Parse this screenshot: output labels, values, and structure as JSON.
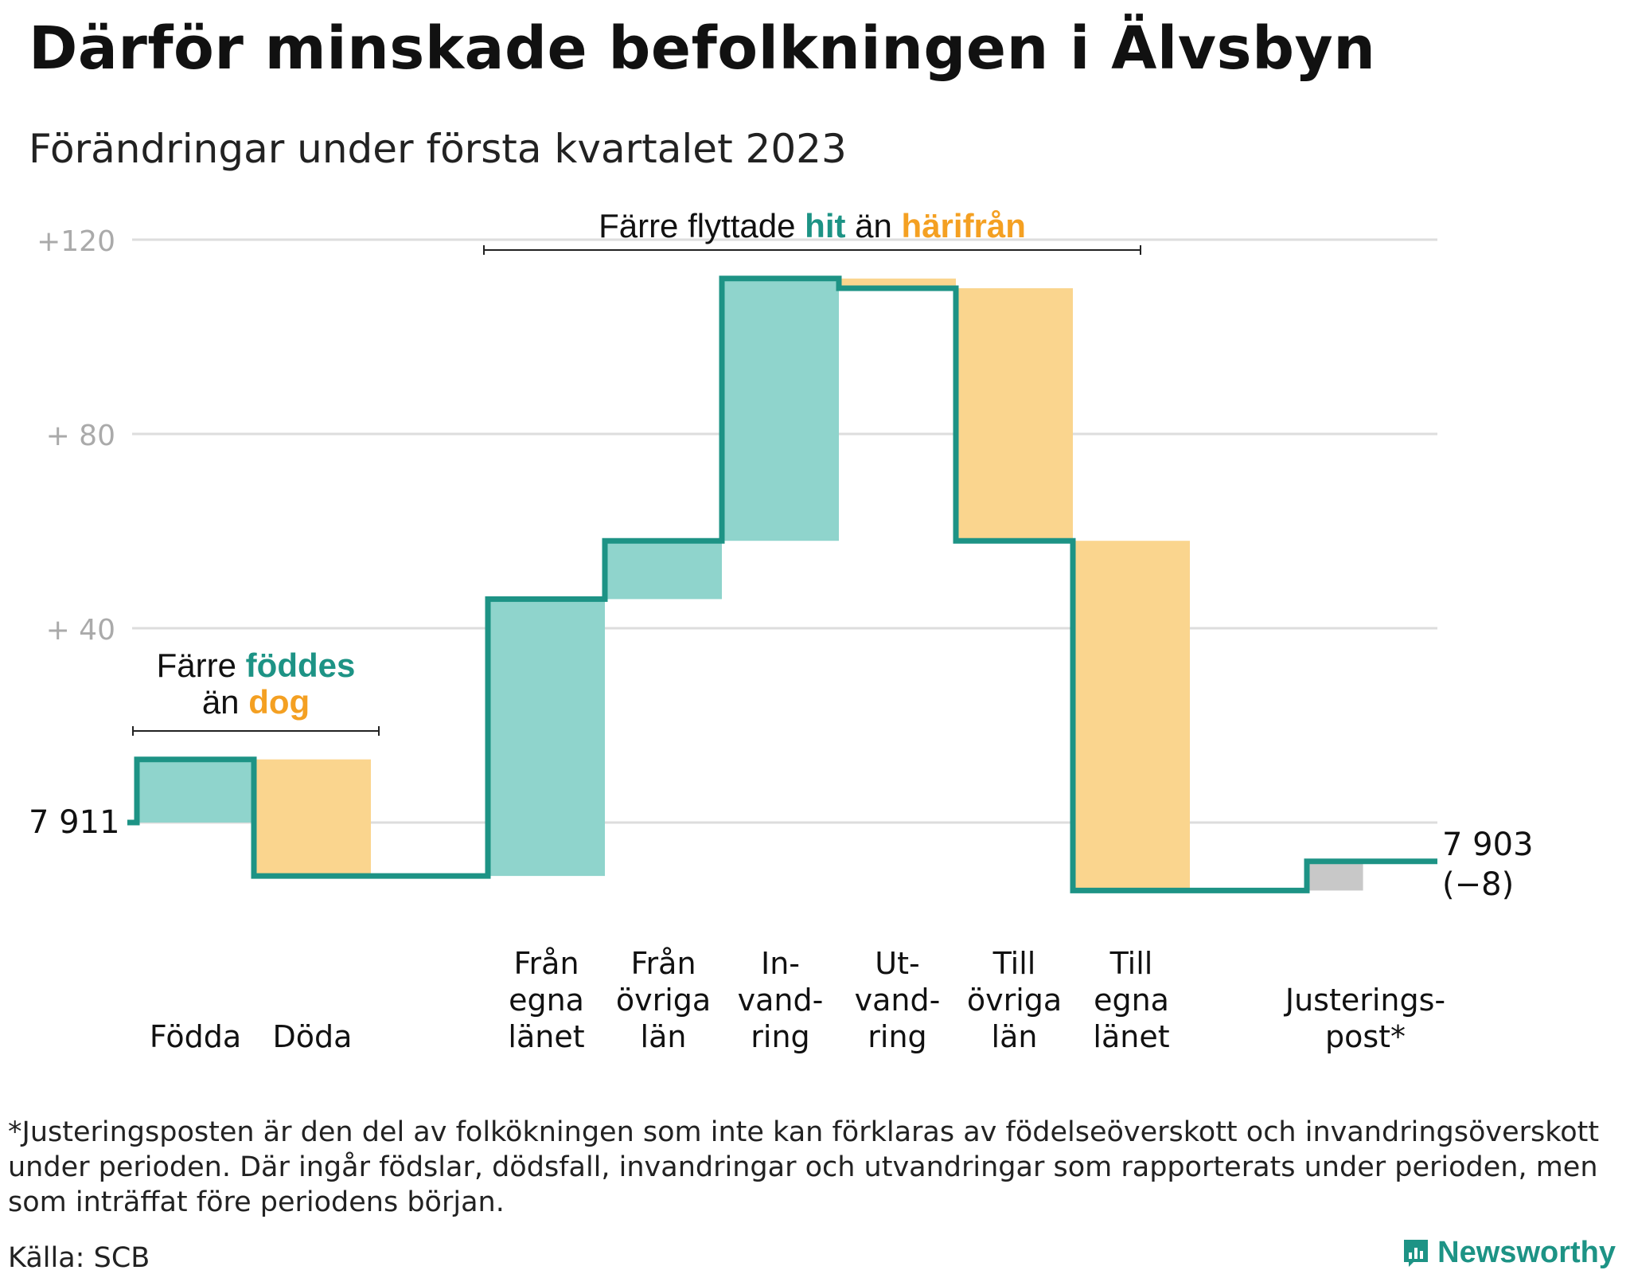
{
  "header": {
    "title": "Därför minskade befolkningen i Älvsbyn",
    "subtitle": "Förändringar under första kvartalet 2023"
  },
  "colors": {
    "line": "#1d9385",
    "increase": "#8fd4cc",
    "decrease": "#fad58e",
    "adjustment": "#c8c8c8",
    "accent_teal": "#1d9385",
    "accent_orange": "#f4a022",
    "grid": "#dddddd",
    "tick": "#aaaaaa"
  },
  "chart_data": {
    "type": "waterfall",
    "start_label": "7 911",
    "end_label": "7 903",
    "end_change_label": "(−8)",
    "ylim": [
      -20,
      120
    ],
    "yticks": [
      {
        "value": 40,
        "label": "+ 40"
      },
      {
        "value": 80,
        "label": "+ 80"
      },
      {
        "value": 120,
        "label": "+120"
      }
    ],
    "grid": true,
    "categories": [
      {
        "label": [
          "Födda"
        ],
        "change": 13,
        "kind": "increase"
      },
      {
        "label": [
          "Döda"
        ],
        "change": -24,
        "kind": "decrease"
      },
      {
        "label": [],
        "change": 0,
        "kind": "none"
      },
      {
        "label": [
          "Från",
          "egna",
          "länet"
        ],
        "change": 57,
        "kind": "increase"
      },
      {
        "label": [
          "Från",
          "övriga",
          "län"
        ],
        "change": 12,
        "kind": "increase"
      },
      {
        "label": [
          "In-",
          "vand-",
          "ring"
        ],
        "change": 54,
        "kind": "increase"
      },
      {
        "label": [
          "Ut-",
          "vand-",
          "ring"
        ],
        "change": -2,
        "kind": "decrease"
      },
      {
        "label": [
          "Till",
          "övriga",
          "län"
        ],
        "change": -52,
        "kind": "decrease"
      },
      {
        "label": [
          "Till",
          "egna",
          "länet"
        ],
        "change": -72,
        "kind": "decrease"
      },
      {
        "label": [],
        "change": 0,
        "kind": "none"
      },
      {
        "label": [
          "Justerings-",
          "post*"
        ],
        "change": 6,
        "kind": "adjustment"
      }
    ],
    "annotations": [
      {
        "text_plain": "Färre",
        "text_teal": "föddes",
        "text_mid": "än",
        "text_orange": "dog",
        "spans": [
          0,
          1
        ]
      },
      {
        "text_plain": "Färre flyttade",
        "text_teal": "hit",
        "text_mid": "än",
        "text_orange": "härifrån",
        "spans": [
          3,
          8
        ]
      }
    ]
  },
  "footer": {
    "footnote": "*Justeringsposten är den del av folkökningen som inte kan förklaras av födelseöverskott och invandringsöverskott under perioden. Där ingår födslar, dödsfall, invandringar och utvandringar som rapporterats under perioden, men som inträffat före periodens början.",
    "source": "Källa: SCB",
    "brand": "Newsworthy"
  }
}
